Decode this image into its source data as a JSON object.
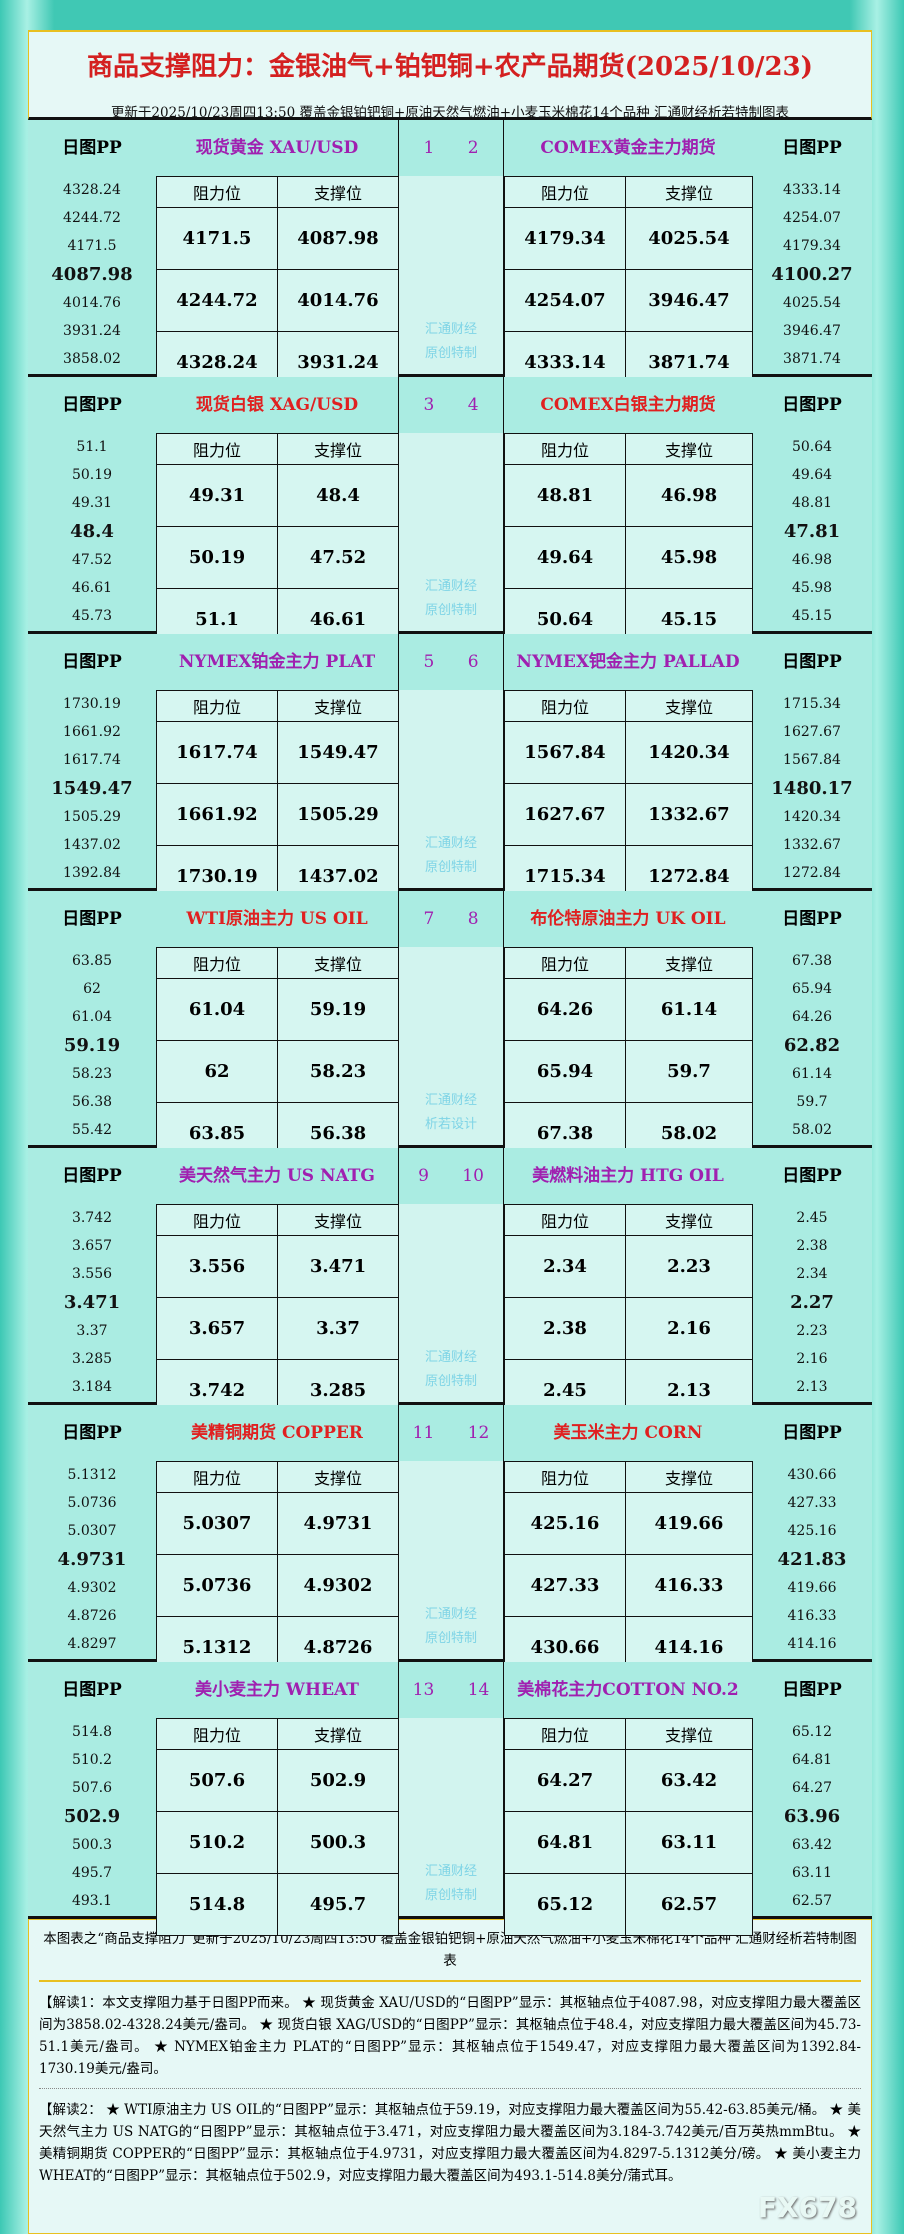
{
  "header": {
    "title": "商品支撑阻力：金银油气+铂钯铜+农产品期货(2025/10/23)",
    "subtitle": "更新于2025/10/23周四13:50 覆盖金银铂钯铜+原油天然气燃油+小麦玉米棉花14个品种 汇通财经析若特制图表"
  },
  "labels": {
    "pp": "日图PP",
    "res": "阻力位",
    "sup": "支撑位"
  },
  "colors": {
    "purple": "#a020b0",
    "red": "#e02020"
  },
  "sections": [
    {
      "nums": "1 2",
      "watermark": [
        "汇通财经",
        "原创特制"
      ],
      "left": {
        "name": "现货黄金 XAU/USD",
        "color": "purple",
        "pp": [
          "4328.24",
          "4244.72",
          "4171.5",
          "4087.98",
          "4014.76",
          "3931.24",
          "3858.02"
        ],
        "res": [
          "4171.5",
          "4244.72",
          "4328.24"
        ],
        "sup": [
          "4087.98",
          "4014.76",
          "3931.24"
        ]
      },
      "right": {
        "name": "COMEX黄金主力期货",
        "color": "purple",
        "pp": [
          "4333.14",
          "4254.07",
          "4179.34",
          "4100.27",
          "4025.54",
          "3946.47",
          "3871.74"
        ],
        "res": [
          "4179.34",
          "4254.07",
          "4333.14"
        ],
        "sup": [
          "4025.54",
          "3946.47",
          "3871.74"
        ]
      }
    },
    {
      "nums": "3 4",
      "watermark": [
        "汇通财经",
        "原创特制"
      ],
      "left": {
        "name": "现货白银 XAG/USD",
        "color": "red",
        "pp": [
          "51.1",
          "50.19",
          "49.31",
          "48.4",
          "47.52",
          "46.61",
          "45.73"
        ],
        "res": [
          "49.31",
          "50.19",
          "51.1"
        ],
        "sup": [
          "48.4",
          "47.52",
          "46.61"
        ]
      },
      "right": {
        "name": "COMEX白银主力期货",
        "color": "red",
        "pp": [
          "50.64",
          "49.64",
          "48.81",
          "47.81",
          "46.98",
          "45.98",
          "45.15"
        ],
        "res": [
          "48.81",
          "49.64",
          "50.64"
        ],
        "sup": [
          "46.98",
          "45.98",
          "45.15"
        ]
      }
    },
    {
      "nums": "5 6",
      "watermark": [
        "汇通财经",
        "原创特制"
      ],
      "left": {
        "name": "NYMEX铂金主力 PLAT",
        "color": "purple",
        "pp": [
          "1730.19",
          "1661.92",
          "1617.74",
          "1549.47",
          "1505.29",
          "1437.02",
          "1392.84"
        ],
        "res": [
          "1617.74",
          "1661.92",
          "1730.19"
        ],
        "sup": [
          "1549.47",
          "1505.29",
          "1437.02"
        ]
      },
      "right": {
        "name": "NYMEX钯金主力 PALLAD",
        "color": "purple",
        "pp": [
          "1715.34",
          "1627.67",
          "1567.84",
          "1480.17",
          "1420.34",
          "1332.67",
          "1272.84"
        ],
        "res": [
          "1567.84",
          "1627.67",
          "1715.34"
        ],
        "sup": [
          "1420.34",
          "1332.67",
          "1272.84"
        ]
      }
    },
    {
      "nums": "7 8",
      "watermark": [
        "汇通财经",
        "析若设计"
      ],
      "left": {
        "name": "WTI原油主力 US OIL",
        "color": "red",
        "pp": [
          "63.85",
          "62",
          "61.04",
          "59.19",
          "58.23",
          "56.38",
          "55.42"
        ],
        "res": [
          "61.04",
          "62",
          "63.85"
        ],
        "sup": [
          "59.19",
          "58.23",
          "56.38"
        ]
      },
      "right": {
        "name": "布伦特原油主力 UK OIL",
        "color": "red",
        "pp": [
          "67.38",
          "65.94",
          "64.26",
          "62.82",
          "61.14",
          "59.7",
          "58.02"
        ],
        "res": [
          "64.26",
          "65.94",
          "67.38"
        ],
        "sup": [
          "61.14",
          "59.7",
          "58.02"
        ]
      }
    },
    {
      "nums": "9 10",
      "watermark": [
        "汇通财经",
        "原创特制"
      ],
      "left": {
        "name": "美天然气主力 US NATG",
        "color": "purple",
        "pp": [
          "3.742",
          "3.657",
          "3.556",
          "3.471",
          "3.37",
          "3.285",
          "3.184"
        ],
        "res": [
          "3.556",
          "3.657",
          "3.742"
        ],
        "sup": [
          "3.471",
          "3.37",
          "3.285"
        ]
      },
      "right": {
        "name": "美燃料油主力 HTG OIL",
        "color": "purple",
        "pp": [
          "2.45",
          "2.38",
          "2.34",
          "2.27",
          "2.23",
          "2.16",
          "2.13"
        ],
        "res": [
          "2.34",
          "2.38",
          "2.45"
        ],
        "sup": [
          "2.23",
          "2.16",
          "2.13"
        ]
      }
    },
    {
      "nums": "11 12",
      "watermark": [
        "汇通财经",
        "原创特制"
      ],
      "left": {
        "name": "美精铜期货 COPPER",
        "color": "red",
        "pp": [
          "5.1312",
          "5.0736",
          "5.0307",
          "4.9731",
          "4.9302",
          "4.8726",
          "4.8297"
        ],
        "res": [
          "5.0307",
          "5.0736",
          "5.1312"
        ],
        "sup": [
          "4.9731",
          "4.9302",
          "4.8726"
        ]
      },
      "right": {
        "name": "美玉米主力 CORN",
        "color": "red",
        "pp": [
          "430.66",
          "427.33",
          "425.16",
          "421.83",
          "419.66",
          "416.33",
          "414.16"
        ],
        "res": [
          "425.16",
          "427.33",
          "430.66"
        ],
        "sup": [
          "419.66",
          "416.33",
          "414.16"
        ]
      }
    },
    {
      "nums": "13 14",
      "watermark": [
        "汇通财经",
        "原创特制"
      ],
      "left": {
        "name": "美小麦主力 WHEAT",
        "color": "purple",
        "pp": [
          "514.8",
          "510.2",
          "507.6",
          "502.9",
          "500.3",
          "495.7",
          "493.1"
        ],
        "res": [
          "507.6",
          "510.2",
          "514.8"
        ],
        "sup": [
          "502.9",
          "500.3",
          "495.7"
        ]
      },
      "right": {
        "name": "美棉花主力COTTON NO.2",
        "color": "purple",
        "pp": [
          "65.12",
          "64.81",
          "64.27",
          "63.96",
          "63.42",
          "63.11",
          "62.57"
        ],
        "res": [
          "64.27",
          "64.81",
          "65.12"
        ],
        "sup": [
          "63.42",
          "63.11",
          "62.57"
        ]
      }
    }
  ],
  "footer": {
    "note": "本图表之“商品支撑阻力”更新于2025/10/23周四13:50 覆盖金银铂钯铜+原油天然气燃油+小麦玉米棉花14个品种 汇通财经析若特制图表",
    "interp1": "【解读1：本文支撑阻力基于日图PP而来。 ★ 现货黄金 XAU/USD的“日图PP”显示：其枢轴点位于4087.98，对应支撑阻力最大覆盖区间为3858.02-4328.24美元/盎司。 ★ 现货白银 XAG/USD的“日图PP”显示：其枢轴点位于48.4，对应支撑阻力最大覆盖区间为45.73-51.1美元/盎司。 ★ NYMEX铂金主力 PLAT的“日图PP”显示：其枢轴点位于1549.47，对应支撑阻力最大覆盖区间为1392.84-1730.19美元/盎司。",
    "interp2": "【解读2： ★ WTI原油主力 US OIL的“日图PP”显示：其枢轴点位于59.19，对应支撑阻力最大覆盖区间为55.42-63.85美元/桶。 ★ 美天然气主力 US NATG的“日图PP”显示：其枢轴点位于3.471，对应支撑阻力最大覆盖区间为3.184-3.742美元/百万英热mmBtu。 ★ 美精铜期货 COPPER的“日图PP”显示：其枢轴点位于4.9731，对应支撑阻力最大覆盖区间为4.8297-5.1312美分/磅。 ★ 美小麦主力 WHEAT的“日图PP”显示：其枢轴点位于502.9，对应支撑阻力最大覆盖区间为493.1-514.8美分/蒲式耳。",
    "logo": "FX678"
  }
}
